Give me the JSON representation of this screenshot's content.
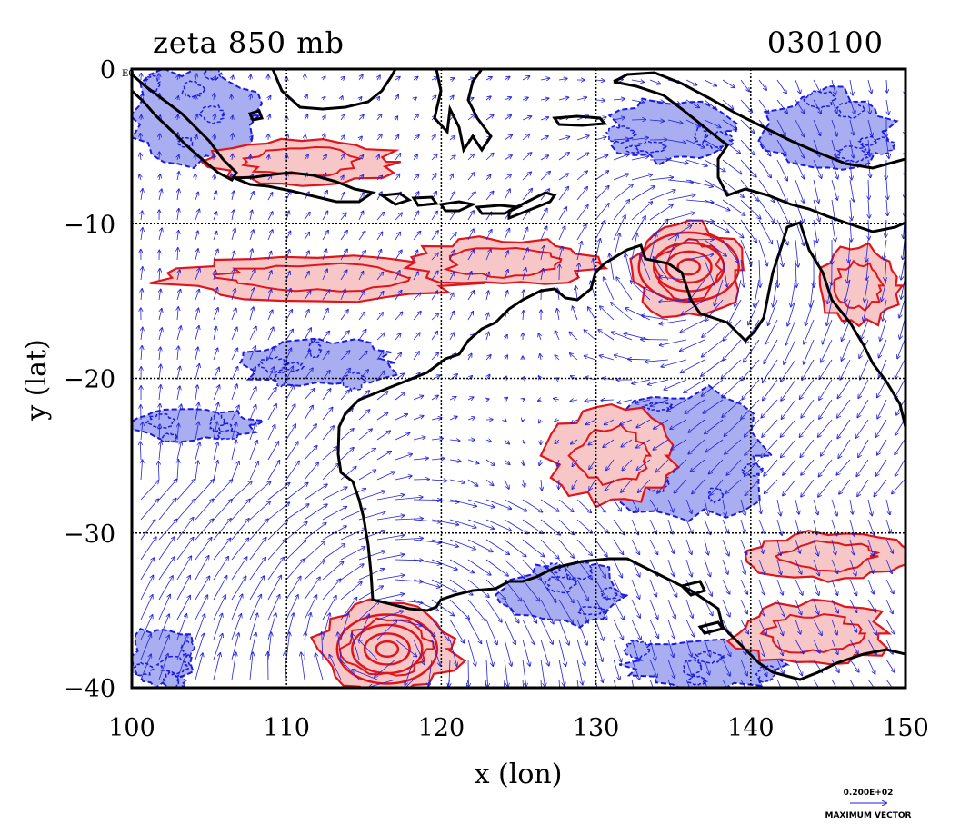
{
  "title_left": "zeta  850  mb",
  "title_right": "030100",
  "corner_label": "E0",
  "colors": {
    "positive_fill": "#f7c6c6",
    "positive_line": "#e0151b",
    "negative_fill": "#a9aef0",
    "negative_line": "#1a1ae6",
    "vector": "#2020e0",
    "coast": "#000000",
    "grid": "#000000"
  },
  "chart_data": {
    "type": "map",
    "title": "zeta  850  mb",
    "xlabel": "x (lon)",
    "ylabel": "y (lat)",
    "xlim": [
      100,
      150
    ],
    "ylim": [
      -40,
      0
    ],
    "xticks": [
      100,
      110,
      120,
      130,
      140,
      150
    ],
    "xtick_labels": [
      "100",
      "110",
      "120",
      "130",
      "140",
      "150"
    ],
    "yticks": [
      0,
      -10,
      -20,
      -30,
      -40
    ],
    "ytick_labels": [
      "0",
      "−10",
      "−20",
      "−30",
      "−40"
    ],
    "grid": true,
    "legend": {
      "vector_scale": "0.200E+02",
      "vector_label": "MAXIMUM  VECTOR"
    },
    "features": {
      "positive_vorticity_regions": [
        {
          "lon": 116.5,
          "lat": -37.5,
          "rlon": 4.5,
          "rlat": 3.0
        },
        {
          "lon": 136.0,
          "lat": -13.0,
          "rlon": 3.5,
          "rlat": 3.0
        },
        {
          "lon": 112.0,
          "lat": -13.5,
          "rlon": 10.0,
          "rlat": 1.4
        },
        {
          "lon": 124.0,
          "lat": -12.5,
          "rlon": 6.0,
          "rlat": 1.5
        },
        {
          "lon": 111.0,
          "lat": -6.0,
          "rlon": 6.0,
          "rlat": 1.5
        },
        {
          "lon": 131.0,
          "lat": -25.0,
          "rlon": 4.0,
          "rlat": 3.0
        },
        {
          "lon": 145.0,
          "lat": -31.5,
          "rlon": 5.0,
          "rlat": 1.5
        },
        {
          "lon": 144.0,
          "lat": -36.5,
          "rlon": 5.0,
          "rlat": 2.0
        },
        {
          "lon": 147.0,
          "lat": -14.0,
          "rlon": 2.5,
          "rlat": 2.5
        }
      ],
      "negative_vorticity_regions": [
        {
          "lon": 104.0,
          "lat": -3.0,
          "rlon": 4.0,
          "rlat": 3.0
        },
        {
          "lon": 145.0,
          "lat": -4.0,
          "rlon": 4.0,
          "rlat": 2.5
        },
        {
          "lon": 135.0,
          "lat": -4.0,
          "rlon": 4.0,
          "rlat": 2.0
        },
        {
          "lon": 136.0,
          "lat": -25.0,
          "rlon": 5.0,
          "rlat": 4.0
        },
        {
          "lon": 128.0,
          "lat": -34.0,
          "rlon": 4.0,
          "rlat": 2.0
        },
        {
          "lon": 104.0,
          "lat": -23.0,
          "rlon": 4.0,
          "rlat": 1.0
        },
        {
          "lon": 112.0,
          "lat": -19.0,
          "rlon": 5.0,
          "rlat": 1.5
        },
        {
          "lon": 137.0,
          "lat": -38.5,
          "rlon": 5.0,
          "rlat": 1.5
        },
        {
          "lon": 102.0,
          "lat": -38.0,
          "rlon": 2.0,
          "rlat": 2.0
        }
      ],
      "vortex_centers": [
        {
          "lon": 116.5,
          "lat": -37.5
        },
        {
          "lon": 136.0,
          "lat": -12.8
        }
      ]
    }
  }
}
